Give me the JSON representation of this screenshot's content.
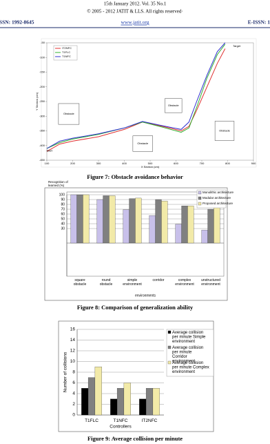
{
  "header": {
    "line1": "15th January 2012. Vol. 35 No.1",
    "line2": "© 2005 - 2012 JATIT & LLS. All rights reserved·",
    "issn": "ISSN: 1992-8645",
    "url": "www.jatit.org",
    "eissn": "E-ISSN: 1"
  },
  "chart_data": [
    {
      "type": "line",
      "caption": "Figure 7:  Obstacle avoidance behavior",
      "x_label": "X Section (cm)",
      "y_label": "Y Section (cm)",
      "x": [
        100,
        150,
        200,
        300,
        400,
        470,
        550,
        620,
        650,
        680,
        720,
        760,
        790
      ],
      "series": [
        {
          "name": "IT2NFC",
          "color": "#e03030",
          "values": [
            -420,
            -395,
            -385,
            -370,
            -345,
            -320,
            -335,
            -350,
            -335,
            -280,
            -200,
            -120,
            -70
          ]
        },
        {
          "name": "T1FLC",
          "color": "#30b030",
          "values": [
            -410,
            -390,
            -378,
            -362,
            -340,
            -320,
            -338,
            -355,
            -340,
            -270,
            -170,
            -90,
            -55
          ]
        },
        {
          "name": "T1NFC",
          "color": "#3030d0",
          "values": [
            -410,
            -385,
            -375,
            -360,
            -340,
            -318,
            -333,
            -345,
            -320,
            -250,
            -160,
            -80,
            -50
          ]
        }
      ],
      "obstacles": [
        {
          "label": "Obstacle",
          "x": [
            145,
            225
          ],
          "y": [
            -257,
            -328
          ]
        },
        {
          "label": "Obstacle",
          "x": [
            557,
            623
          ],
          "y": [
            -240,
            -288
          ]
        },
        {
          "label": "Obstacle",
          "x": [
            433,
            510
          ],
          "y": [
            -367,
            -420
          ]
        },
        {
          "label": "Obstacle",
          "x": [
            751,
            825
          ],
          "y": [
            -317,
            -383
          ]
        }
      ],
      "annotations": [
        {
          "text": "Start",
          "x": 110,
          "y": -418
        },
        {
          "text": "Target",
          "x": 835,
          "y": -62
        }
      ],
      "xlim": [
        100,
        900
      ],
      "ylim": [
        -450,
        -50
      ],
      "xticks": [
        100,
        200,
        300,
        400,
        500,
        600,
        700,
        800,
        900
      ],
      "yticks": [
        -50,
        -100,
        -150,
        -200,
        -250,
        -300,
        -350,
        -400,
        -450
      ],
      "legend": "top-left"
    },
    {
      "type": "bar",
      "caption": "Figure 8: Comparison of generalization ability",
      "y_label": "Recognition of learned (%)",
      "x_label": "environments",
      "categories": [
        "square obstacle",
        "round obstacle",
        "simple environment",
        "corridor",
        "complex environment",
        "unstructured environment"
      ],
      "series": [
        {
          "name": "Monolithic architecture",
          "color": "#c8c0ea",
          "values": [
            100,
            90,
            69,
            57,
            39,
            27
          ]
        },
        {
          "name": "Modular architecture",
          "color": "#808080",
          "values": [
            100,
            98,
            92,
            90,
            77,
            70
          ]
        },
        {
          "name": "Proposed architecture",
          "color": "#f2eaa8",
          "values": [
            100,
            98,
            93,
            87,
            77,
            78
          ]
        }
      ],
      "ylim": [
        0,
        100
      ],
      "yticks": [
        30,
        40,
        50,
        60,
        70,
        80,
        90,
        100
      ],
      "grid": true,
      "legend": "top-right"
    },
    {
      "type": "bar",
      "caption": "Figure 9: Average collision per minute",
      "y_label": "Number of collisions",
      "x_label": "Controllers",
      "categories": [
        "T1FLC",
        "T1NFC",
        "IT2NFC"
      ],
      "series": [
        {
          "name": "Average collision per minute Simple environment",
          "color": "#000000",
          "values": [
            5,
            3,
            3
          ]
        },
        {
          "name": "Average collision per minute Corridor environment",
          "color": "#808080",
          "values": [
            7,
            5,
            5
          ]
        },
        {
          "name": "Average collision per minute Complex environment",
          "color": "#f2eaa8",
          "values": [
            9,
            6,
            5
          ]
        }
      ],
      "ylim": [
        0,
        16
      ],
      "yticks": [
        0,
        2,
        4,
        6,
        8,
        10,
        12,
        14,
        16
      ],
      "grid": true,
      "legend": "right"
    }
  ]
}
